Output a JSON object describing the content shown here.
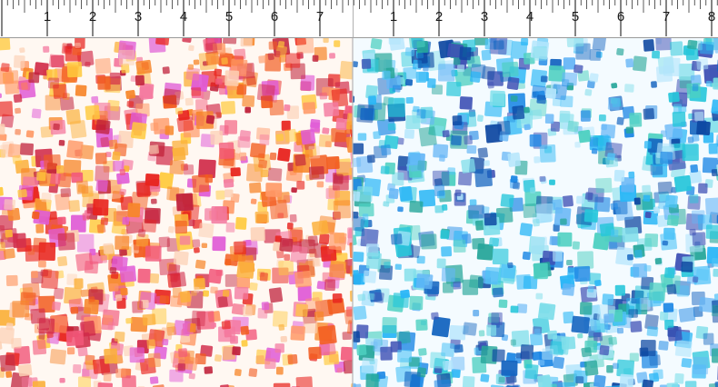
{
  "rulers": [
    {
      "id": "left",
      "labels": [
        "1",
        "2",
        "3",
        "4",
        "5",
        "6",
        "7"
      ]
    },
    {
      "id": "right",
      "labels": [
        "1",
        "2",
        "3",
        "4",
        "5",
        "6",
        "7",
        "8"
      ]
    }
  ],
  "colorways": [
    {
      "id": "warm",
      "colors": [
        "#e8231d",
        "#f25c1f",
        "#f7862a",
        "#fbb03b",
        "#ffc93c",
        "#f2587a",
        "#f47aa0",
        "#d12c4a",
        "#ff9966",
        "#e05bd6",
        "#c0213a",
        "#fcd0b4"
      ]
    },
    {
      "id": "cool",
      "colors": [
        "#1e88e5",
        "#29b6f6",
        "#4fc3f7",
        "#0d47a1",
        "#26c6da",
        "#4dd0c1",
        "#3f51b5",
        "#64b5f6",
        "#1565c0",
        "#80deea",
        "#26a69a",
        "#b3e5fc"
      ]
    }
  ]
}
